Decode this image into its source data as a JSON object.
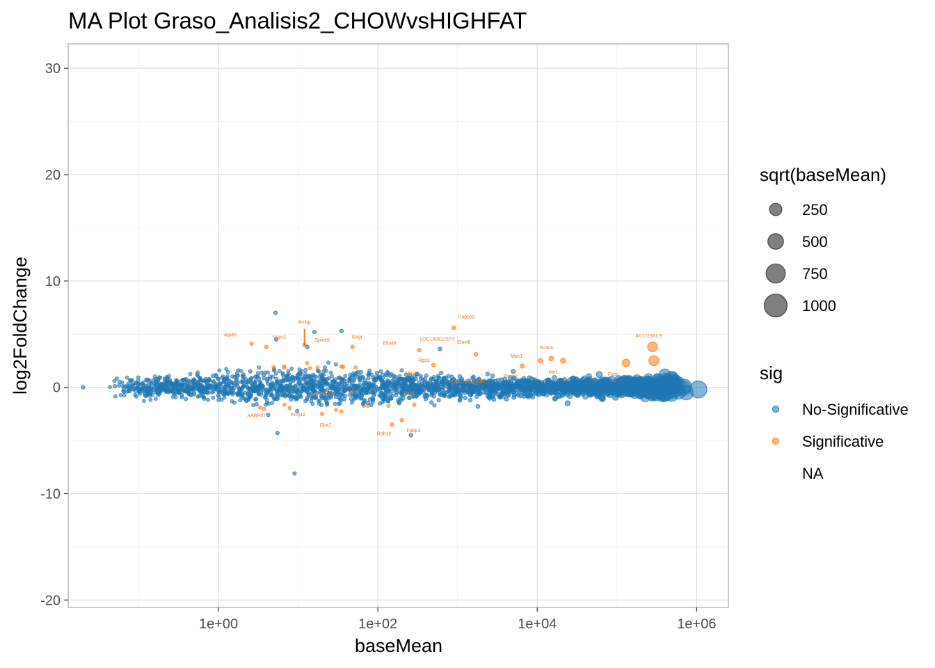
{
  "chart_data": {
    "type": "scatter",
    "title": "MA Plot Graso_Analisis2_CHOWvsHIGHFAT",
    "xlabel": "baseMean",
    "ylabel": "log2FoldChange",
    "xscale": "log10",
    "xlim": [
      0.013,
      2500000
    ],
    "ylim": [
      -20.7,
      32.3
    ],
    "grid": true,
    "x_ticks": [
      {
        "value": 1,
        "label": "1e+00"
      },
      {
        "value": 100,
        "label": "1e+02"
      },
      {
        "value": 10000,
        "label": "1e+04"
      },
      {
        "value": 1000000,
        "label": "1e+06"
      }
    ],
    "y_ticks": [
      {
        "value": -20,
        "label": "-20"
      },
      {
        "value": -10,
        "label": "-10"
      },
      {
        "value": 0,
        "label": "0"
      },
      {
        "value": 10,
        "label": "10"
      },
      {
        "value": 20,
        "label": "20"
      },
      {
        "value": 30,
        "label": "30"
      }
    ],
    "colors": {
      "No-Significative": "#1f77b4",
      "Significative": "#ff7f0e",
      "label": "#e8781f"
    },
    "size_legend": {
      "title": "sqrt(baseMean)",
      "entries": [
        {
          "label": "250",
          "value": 250
        },
        {
          "label": "500",
          "value": 500
        },
        {
          "label": "750",
          "value": 750
        },
        {
          "label": "1000",
          "value": 1000
        }
      ]
    },
    "color_legend": {
      "title": "sig",
      "entries": [
        {
          "label": "No-Significative",
          "color": "#1f77b4"
        },
        {
          "label": "Significative",
          "color": "#ff7f0e"
        },
        {
          "label": "NA",
          "color": ""
        }
      ]
    },
    "points": [
      {
        "x": 0.02,
        "y": 0.0,
        "sig": "No-Significative"
      },
      {
        "x": 0.05,
        "y": 0.1,
        "sig": "No-Significative"
      },
      {
        "x": 0.08,
        "y": 0.6,
        "sig": "No-Significative"
      },
      {
        "x": 0.15,
        "y": -0.3,
        "sig": "No-Significative"
      },
      {
        "x": 0.3,
        "y": 0.4,
        "sig": "No-Significative"
      },
      {
        "x": 0.6,
        "y": -0.5,
        "sig": "No-Significative"
      },
      {
        "x": 1.2,
        "y": 0.8,
        "sig": "No-Significative"
      },
      {
        "x": 2.5,
        "y": 1.5,
        "sig": "No-Significative"
      },
      {
        "x": 3,
        "y": -1.6,
        "sig": "No-Significative"
      },
      {
        "x": 4.2,
        "y": -2.6,
        "sig": "No-Significative"
      },
      {
        "x": 5.2,
        "y": 7.0,
        "sig": "No-Significative"
      },
      {
        "x": 5.5,
        "y": -4.3,
        "sig": "No-Significative"
      },
      {
        "x": 5.3,
        "y": 4.5,
        "sig": "No-Significative"
      },
      {
        "x": 9,
        "y": -8.1,
        "sig": "No-Significative"
      },
      {
        "x": 13,
        "y": 3.8,
        "sig": "No-Significative"
      },
      {
        "x": 16,
        "y": 5.2,
        "sig": "No-Significative"
      },
      {
        "x": 35,
        "y": 5.3,
        "sig": "No-Significative"
      },
      {
        "x": 260,
        "y": -4.5,
        "sig": "No-Significative"
      },
      {
        "x": 600,
        "y": 3.6,
        "sig": "No-Significative"
      },
      {
        "x": 1800,
        "y": -1.8,
        "sig": "No-Significative"
      },
      {
        "x": 5000,
        "y": 1.5,
        "sig": "No-Significative"
      },
      {
        "x": 24000,
        "y": -1.5,
        "sig": "No-Significative"
      },
      {
        "x": 60000,
        "y": 1.2,
        "sig": "No-Significative"
      },
      {
        "x": 150000,
        "y": 0.6,
        "sig": "No-Significative"
      },
      {
        "x": 260000,
        "y": -0.6,
        "sig": "No-Significative"
      },
      {
        "x": 400000,
        "y": 1.2,
        "sig": "No-Significative"
      },
      {
        "x": 420000,
        "y": -0.3,
        "sig": "No-Significative"
      },
      {
        "x": 700000,
        "y": 0.1,
        "sig": "No-Significative"
      },
      {
        "x": 1050000,
        "y": -0.2,
        "sig": "No-Significative"
      },
      {
        "x": 2.6,
        "y": 4.1,
        "sig": "Significative"
      },
      {
        "x": 4,
        "y": 3.8,
        "sig": "Significative"
      },
      {
        "x": 12,
        "y": 4.0,
        "sig": "Significative"
      },
      {
        "x": 20,
        "y": -2.5,
        "sig": "Significative"
      },
      {
        "x": 48,
        "y": 3.8,
        "sig": "Significative"
      },
      {
        "x": 150,
        "y": -3.5,
        "sig": "Significative"
      },
      {
        "x": 200,
        "y": -3.1,
        "sig": "Significative"
      },
      {
        "x": 330,
        "y": 3.5,
        "sig": "Significative"
      },
      {
        "x": 500,
        "y": 2.1,
        "sig": "Significative"
      },
      {
        "x": 900,
        "y": 5.6,
        "sig": "Significative"
      },
      {
        "x": 1700,
        "y": 3.1,
        "sig": "Significative"
      },
      {
        "x": 6500,
        "y": 2.0,
        "sig": "Significative"
      },
      {
        "x": 11000,
        "y": 2.5,
        "sig": "Significative"
      },
      {
        "x": 15000,
        "y": 2.7,
        "sig": "Significative"
      },
      {
        "x": 21000,
        "y": 2.5,
        "sig": "Significative"
      },
      {
        "x": 130000,
        "y": 2.3,
        "sig": "Significative"
      },
      {
        "x": 280000,
        "y": 3.8,
        "sig": "Significative"
      },
      {
        "x": 290000,
        "y": 2.5,
        "sig": "Significative"
      }
    ],
    "annotations": [
      {
        "text": "Ambp",
        "x": 12,
        "y": 6.0
      },
      {
        "text": "Atp4b",
        "x": 1.4,
        "y": 4.8
      },
      {
        "text": "Naps1",
        "x": 5.8,
        "y": 4.6
      },
      {
        "text": "Spink5",
        "x": 20,
        "y": 4.3
      },
      {
        "text": "Gcgr",
        "x": 55,
        "y": 4.6
      },
      {
        "text": "Elovl6",
        "x": 140,
        "y": 4.0
      },
      {
        "text": "LOC100912373",
        "x": 550,
        "y": 4.4
      },
      {
        "text": "Pappa2",
        "x": 1300,
        "y": 6.5
      },
      {
        "text": "Elovl6",
        "x": 1200,
        "y": 4.1
      },
      {
        "text": "Mpc1",
        "x": 5500,
        "y": 2.8
      },
      {
        "text": "Acaca",
        "x": 13000,
        "y": 3.6
      },
      {
        "text": "AY172581.9",
        "x": 250000,
        "y": 4.7
      },
      {
        "text": "Rgs2",
        "x": 380,
        "y": 2.4
      },
      {
        "text": "Mgst2",
        "x": 270,
        "y": 1.2
      },
      {
        "text": "Me1",
        "x": 16000,
        "y": 1.3
      },
      {
        "text": "Fasn",
        "x": 90000,
        "y": 1.1
      },
      {
        "text": "LOC102556347",
        "x": 1400,
        "y": 0.4
      },
      {
        "text": "Parm1",
        "x": 4600,
        "y": 0.9
      },
      {
        "text": "Tmem200b",
        "x": 20,
        "y": -0.8
      },
      {
        "text": "Cbs",
        "x": 48,
        "y": -0.6
      },
      {
        "text": "Zim1",
        "x": 250,
        "y": -0.7
      },
      {
        "text": "Kcnj12",
        "x": 10,
        "y": -2.7
      },
      {
        "text": "AABR07",
        "x": 3,
        "y": -2.8
      },
      {
        "text": "Gbx2",
        "x": 22,
        "y": -3.7
      },
      {
        "text": "Rdh12",
        "x": 120,
        "y": -4.5
      },
      {
        "text": "Fabp3",
        "x": 280,
        "y": -4.2
      }
    ]
  }
}
